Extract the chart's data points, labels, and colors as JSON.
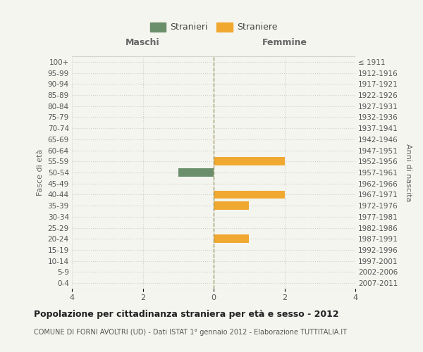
{
  "age_groups": [
    "100+",
    "95-99",
    "90-94",
    "85-89",
    "80-84",
    "75-79",
    "70-74",
    "65-69",
    "60-64",
    "55-59",
    "50-54",
    "45-49",
    "40-44",
    "35-39",
    "30-34",
    "25-29",
    "20-24",
    "15-19",
    "10-14",
    "5-9",
    "0-4"
  ],
  "birth_years": [
    "≤ 1911",
    "1912-1916",
    "1917-1921",
    "1922-1926",
    "1927-1931",
    "1932-1936",
    "1937-1941",
    "1942-1946",
    "1947-1951",
    "1952-1956",
    "1957-1961",
    "1962-1966",
    "1967-1971",
    "1972-1976",
    "1977-1981",
    "1982-1986",
    "1987-1991",
    "1992-1996",
    "1997-2001",
    "2002-2006",
    "2007-2011"
  ],
  "maschi_values": [
    0,
    0,
    0,
    0,
    0,
    0,
    0,
    0,
    0,
    0,
    -1,
    0,
    0,
    0,
    0,
    0,
    0,
    0,
    0,
    0,
    0
  ],
  "femmine_values": [
    0,
    0,
    0,
    0,
    0,
    0,
    0,
    0,
    0,
    2,
    0,
    0,
    2,
    1,
    0,
    0,
    1,
    0,
    0,
    0,
    0
  ],
  "maschi_color": "#6b8e6b",
  "femmine_color": "#f0a830",
  "bg_color": "#f5f5f0",
  "grid_color": "#d0d0cc",
  "center_line_color": "#999966",
  "title": "Popolazione per cittadinanza straniera per età e sesso - 2012",
  "subtitle": "COMUNE DI FORNI AVOLTRI (UD) - Dati ISTAT 1° gennaio 2012 - Elaborazione TUTTITALIA.IT",
  "xlabel_left": "Maschi",
  "xlabel_right": "Femmine",
  "ylabel_left": "Fasce di età",
  "ylabel_right": "Anni di nascita",
  "xlim": 4,
  "xticks": [
    -4,
    -2,
    0,
    2,
    4
  ],
  "xtick_labels": [
    "4",
    "2",
    "0",
    "2",
    "4"
  ],
  "legend_stranieri": "Stranieri",
  "legend_straniere": "Straniere"
}
